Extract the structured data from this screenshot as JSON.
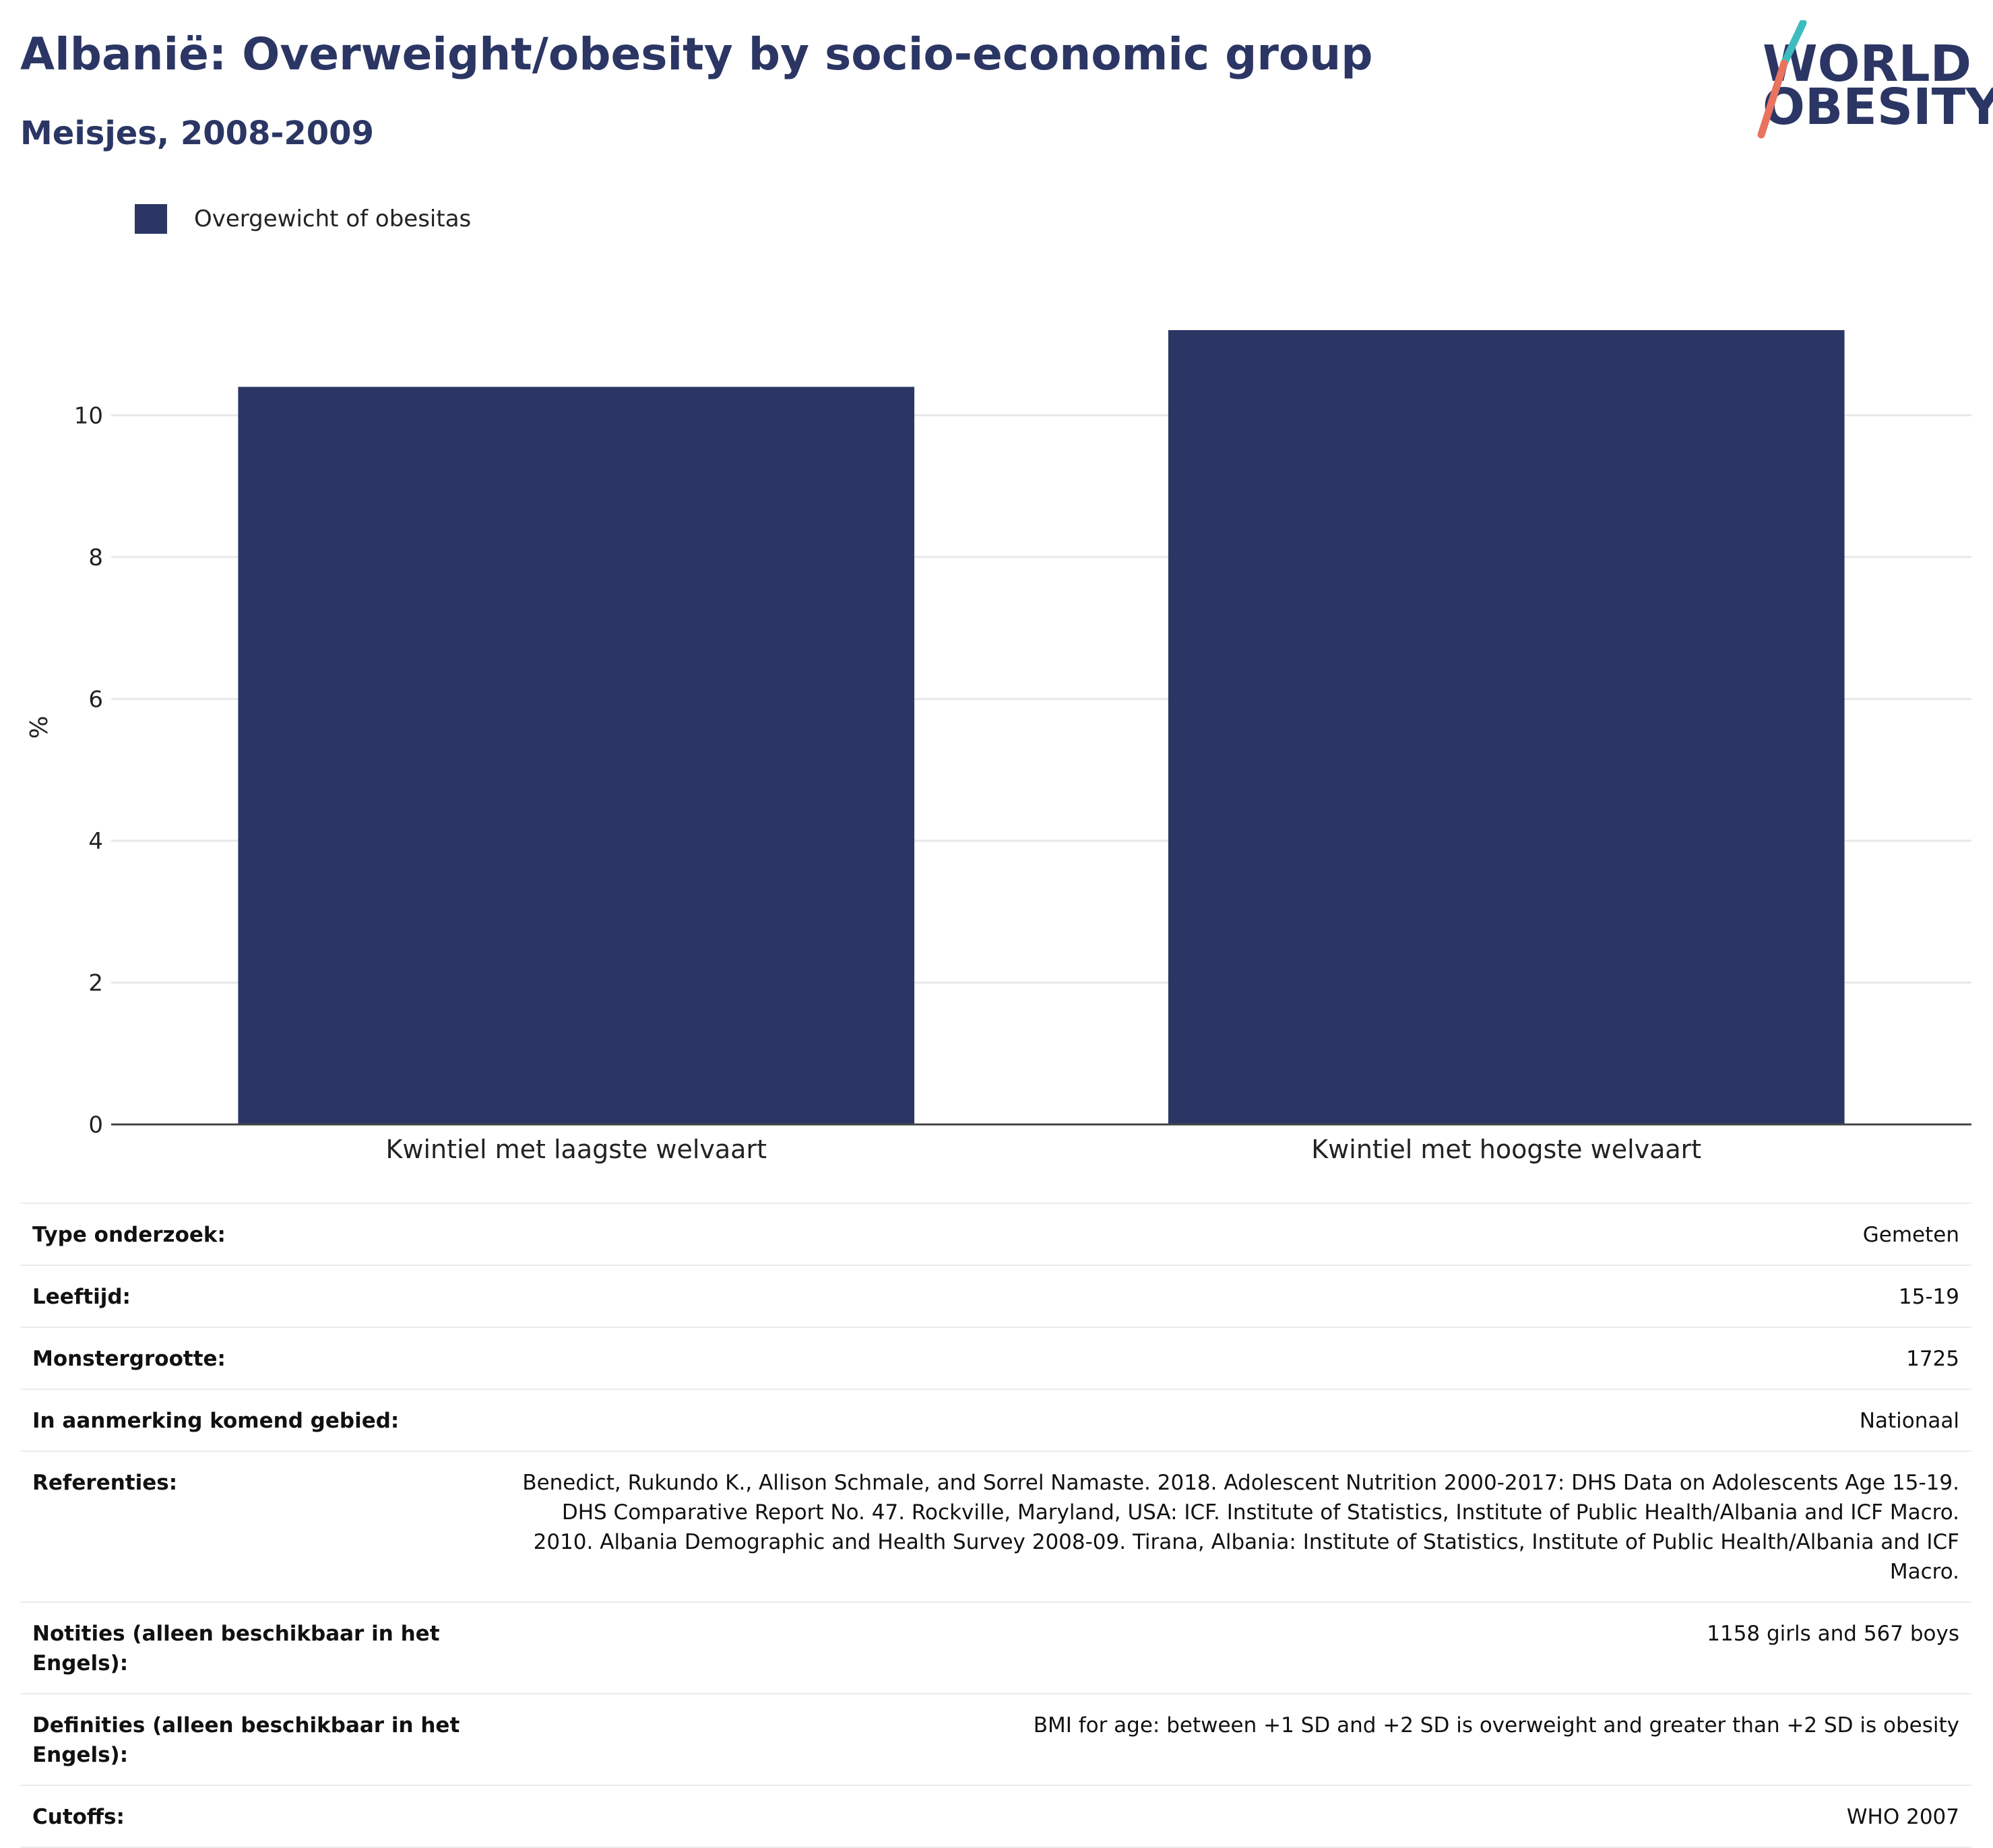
{
  "header": {
    "title": "Albanië: Overweight/obesity by socio-economic group",
    "subtitle": "Meisjes, 2008-2009"
  },
  "logo": {
    "line1": "WORLD",
    "line2": "OBESITY",
    "colors": {
      "text": "#2b3664",
      "teal": "#3dbcc0",
      "coral": "#e8735f"
    }
  },
  "legend": {
    "label": "Overgewicht of obesitas",
    "color": "#2b3664"
  },
  "chart_data": {
    "type": "bar",
    "categories": [
      "Kwintiel met laagste welvaart",
      "Kwintiel met hoogste welvaart"
    ],
    "series": [
      {
        "name": "Overgewicht of obesitas",
        "values": [
          10.4,
          11.2
        ],
        "color": "#2b3664"
      }
    ],
    "title": "Albanië: Overweight/obesity by socio-economic group",
    "subtitle": "Meisjes, 2008-2009",
    "xlabel": "",
    "ylabel": "%",
    "ylim": [
      0,
      11.2
    ],
    "yticks": [
      0,
      2,
      4,
      6,
      8,
      10
    ],
    "grid": true,
    "legend_position": "top-left"
  },
  "info": [
    {
      "key": "Type onderzoek:",
      "value": "Gemeten"
    },
    {
      "key": "Leeftijd:",
      "value": "15-19"
    },
    {
      "key": "Monstergrootte:",
      "value": "1725"
    },
    {
      "key": "In aanmerking komend gebied:",
      "value": "Nationaal"
    },
    {
      "key": "Referenties:",
      "value": "Benedict, Rukundo K., Allison Schmale, and Sorrel Namaste. 2018. Adolescent Nutrition 2000-2017: DHS Data on Adolescents Age 15-19. DHS Comparative Report No. 47. Rockville, Maryland, USA: ICF. Institute of Statistics, Institute of Public Health/Albania and ICF Macro. 2010. Albania Demographic and Health Survey 2008-09. Tirana, Albania: Institute of Statistics, Institute of Public Health/Albania and ICF Macro."
    },
    {
      "key": "Notities (alleen beschikbaar in het Engels):",
      "value": "1158 girls and 567 boys"
    },
    {
      "key": "Definities (alleen beschikbaar in het Engels):",
      "value": "BMI for age: between +1 SD and +2 SD is overweight and greater than +2 SD is obesity"
    },
    {
      "key": "Cutoffs:",
      "value": "WHO 2007"
    }
  ]
}
